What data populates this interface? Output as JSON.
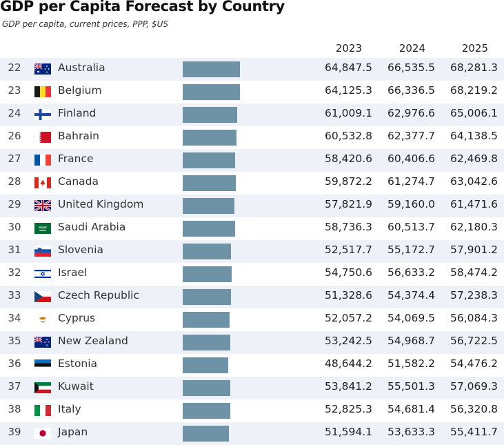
{
  "title": "GDP per Capita Forecast by Country",
  "subtitle": "GDP per capita, current prices, PPP, $US",
  "colors": {
    "bar": "#6e93a6",
    "row_shade": "#eef1f8"
  },
  "chart_data": {
    "type": "table",
    "title": "GDP per Capita Forecast by Country",
    "subtitle": "GDP per capita, current prices, PPP, $US",
    "columns": [
      "2023",
      "2024",
      "2025"
    ],
    "bar_series": "2025",
    "rows": [
      {
        "rank": "22",
        "country": "Australia",
        "flag": "australia-flag-icon",
        "values": [
          "64,847.5",
          "66,535.5",
          "68,281.3"
        ],
        "v2025": 68281.3
      },
      {
        "rank": "23",
        "country": "Belgium",
        "flag": "belgium-flag-icon",
        "values": [
          "64,125.3",
          "66,336.5",
          "68,219.2"
        ],
        "v2025": 68219.2
      },
      {
        "rank": "24",
        "country": "Finland",
        "flag": "finland-flag-icon",
        "values": [
          "61,009.1",
          "62,976.6",
          "65,006.1"
        ],
        "v2025": 65006.1
      },
      {
        "rank": "26",
        "country": "Bahrain",
        "flag": "bahrain-flag-icon",
        "values": [
          "60,532.8",
          "62,377.7",
          "64,138.5"
        ],
        "v2025": 64138.5
      },
      {
        "rank": "27",
        "country": "France",
        "flag": "france-flag-icon",
        "values": [
          "58,420.6",
          "60,406.6",
          "62,469.8"
        ],
        "v2025": 62469.8
      },
      {
        "rank": "28",
        "country": "Canada",
        "flag": "canada-flag-icon",
        "values": [
          "59,872.2",
          "61,274.7",
          "63,042.6"
        ],
        "v2025": 63042.6
      },
      {
        "rank": "29",
        "country": "United Kingdom",
        "flag": "uk-flag-icon",
        "values": [
          "57,821.9",
          "59,160.0",
          "61,471.6"
        ],
        "v2025": 61471.6
      },
      {
        "rank": "30",
        "country": "Saudi Arabia",
        "flag": "saudi-arabia-flag-icon",
        "values": [
          "58,736.3",
          "60,513.7",
          "62,180.3"
        ],
        "v2025": 62180.3
      },
      {
        "rank": "31",
        "country": "Slovenia",
        "flag": "slovenia-flag-icon",
        "values": [
          "52,517.7",
          "55,172.7",
          "57,901.2"
        ],
        "v2025": 57901.2
      },
      {
        "rank": "32",
        "country": "Israel",
        "flag": "israel-flag-icon",
        "values": [
          "54,750.6",
          "56,633.2",
          "58,474.2"
        ],
        "v2025": 58474.2
      },
      {
        "rank": "33",
        "country": "Czech Republic",
        "flag": "czech-flag-icon",
        "values": [
          "51,328.6",
          "54,374.4",
          "57,238.3"
        ],
        "v2025": 57238.3
      },
      {
        "rank": "34",
        "country": "Cyprus",
        "flag": "cyprus-flag-icon",
        "values": [
          "52,057.2",
          "54,069.5",
          "56,084.3"
        ],
        "v2025": 56084.3
      },
      {
        "rank": "35",
        "country": "New Zealand",
        "flag": "new-zealand-flag-icon",
        "values": [
          "53,242.5",
          "54,968.7",
          "56,722.5"
        ],
        "v2025": 56722.5
      },
      {
        "rank": "36",
        "country": "Estonia",
        "flag": "estonia-flag-icon",
        "values": [
          "48,644.2",
          "51,582.2",
          "54,476.2"
        ],
        "v2025": 54476.2
      },
      {
        "rank": "37",
        "country": "Kuwait",
        "flag": "kuwait-flag-icon",
        "values": [
          "53,841.2",
          "55,501.3",
          "57,069.3"
        ],
        "v2025": 57069.3
      },
      {
        "rank": "38",
        "country": "Italy",
        "flag": "italy-flag-icon",
        "values": [
          "52,825.3",
          "54,681.4",
          "56,320.8"
        ],
        "v2025": 56320.8
      },
      {
        "rank": "39",
        "country": "Japan",
        "flag": "japan-flag-icon",
        "values": [
          "51,594.1",
          "53,633.3",
          "55,411.7"
        ],
        "v2025": 55411.7
      }
    ]
  }
}
